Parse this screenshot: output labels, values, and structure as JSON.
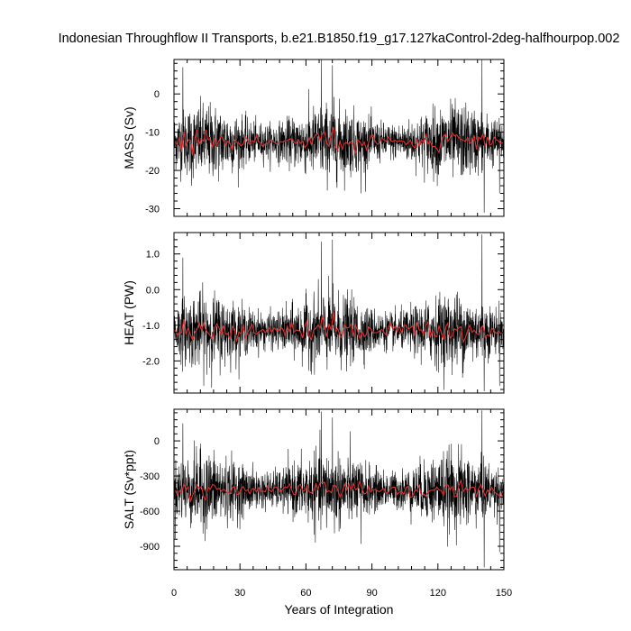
{
  "chart_data": {
    "type": "line",
    "title": "Indonesian Throughflow II Transports, b.e21.B1850.f19_g17.127kaControl-2deg-halfhourpop.002",
    "xlabel": "Years of Integration",
    "xlim": [
      0,
      150
    ],
    "xticks": [
      "0",
      "30",
      "60",
      "90",
      "120",
      "150"
    ],
    "series_colors": {
      "monthly": "#000000",
      "annual": "#e03030"
    },
    "panels": [
      {
        "ylabel": "MASS (Sv)",
        "ylim": [
          -32,
          9
        ],
        "yticks": [
          {
            "value": 0,
            "label": "0"
          },
          {
            "value": -10,
            "label": "-10"
          },
          {
            "value": -20,
            "label": "-20"
          },
          {
            "value": -30,
            "label": "-30"
          }
        ],
        "mean": -12.5,
        "spread": 4.2,
        "spikes": [
          {
            "x": 67,
            "y": 9
          },
          {
            "x": 72,
            "y": 7.5
          },
          {
            "x": 4,
            "y": 7
          },
          {
            "x": 140,
            "y": 9
          },
          {
            "x": 141,
            "y": -31
          },
          {
            "x": 148,
            "y": -26
          },
          {
            "x": 85,
            "y": -26
          },
          {
            "x": 8,
            "y": -24
          }
        ]
      },
      {
        "ylabel": "HEAT (PW)",
        "ylim": [
          -2.9,
          1.6
        ],
        "yticks": [
          {
            "value": 1.0,
            "label": "1.0"
          },
          {
            "value": 0.0,
            "label": "0.0"
          },
          {
            "value": -1.0,
            "label": "-1.0"
          },
          {
            "value": -2.0,
            "label": "-2.0"
          }
        ],
        "mean": -1.15,
        "spread": 0.45,
        "spikes": [
          {
            "x": 67,
            "y": 1.35
          },
          {
            "x": 72,
            "y": 1.4
          },
          {
            "x": 4,
            "y": 0.9
          },
          {
            "x": 140,
            "y": 1.55
          },
          {
            "x": 141,
            "y": -2.85
          },
          {
            "x": 148,
            "y": -2.7
          }
        ]
      },
      {
        "ylabel": "SALT (Sv*ppt)",
        "ylim": [
          -1100,
          270
        ],
        "yticks": [
          {
            "value": 0,
            "label": "0"
          },
          {
            "value": -300,
            "label": "-300"
          },
          {
            "value": -600,
            "label": "-600"
          },
          {
            "value": -900,
            "label": "-900"
          }
        ],
        "mean": -420,
        "spread": 140,
        "spikes": [
          {
            "x": 67,
            "y": 250
          },
          {
            "x": 72,
            "y": 200
          },
          {
            "x": 4,
            "y": 150
          },
          {
            "x": 140,
            "y": 260
          },
          {
            "x": 141,
            "y": -1080
          },
          {
            "x": 148,
            "y": -950
          },
          {
            "x": 85,
            "y": -880
          }
        ]
      }
    ]
  }
}
